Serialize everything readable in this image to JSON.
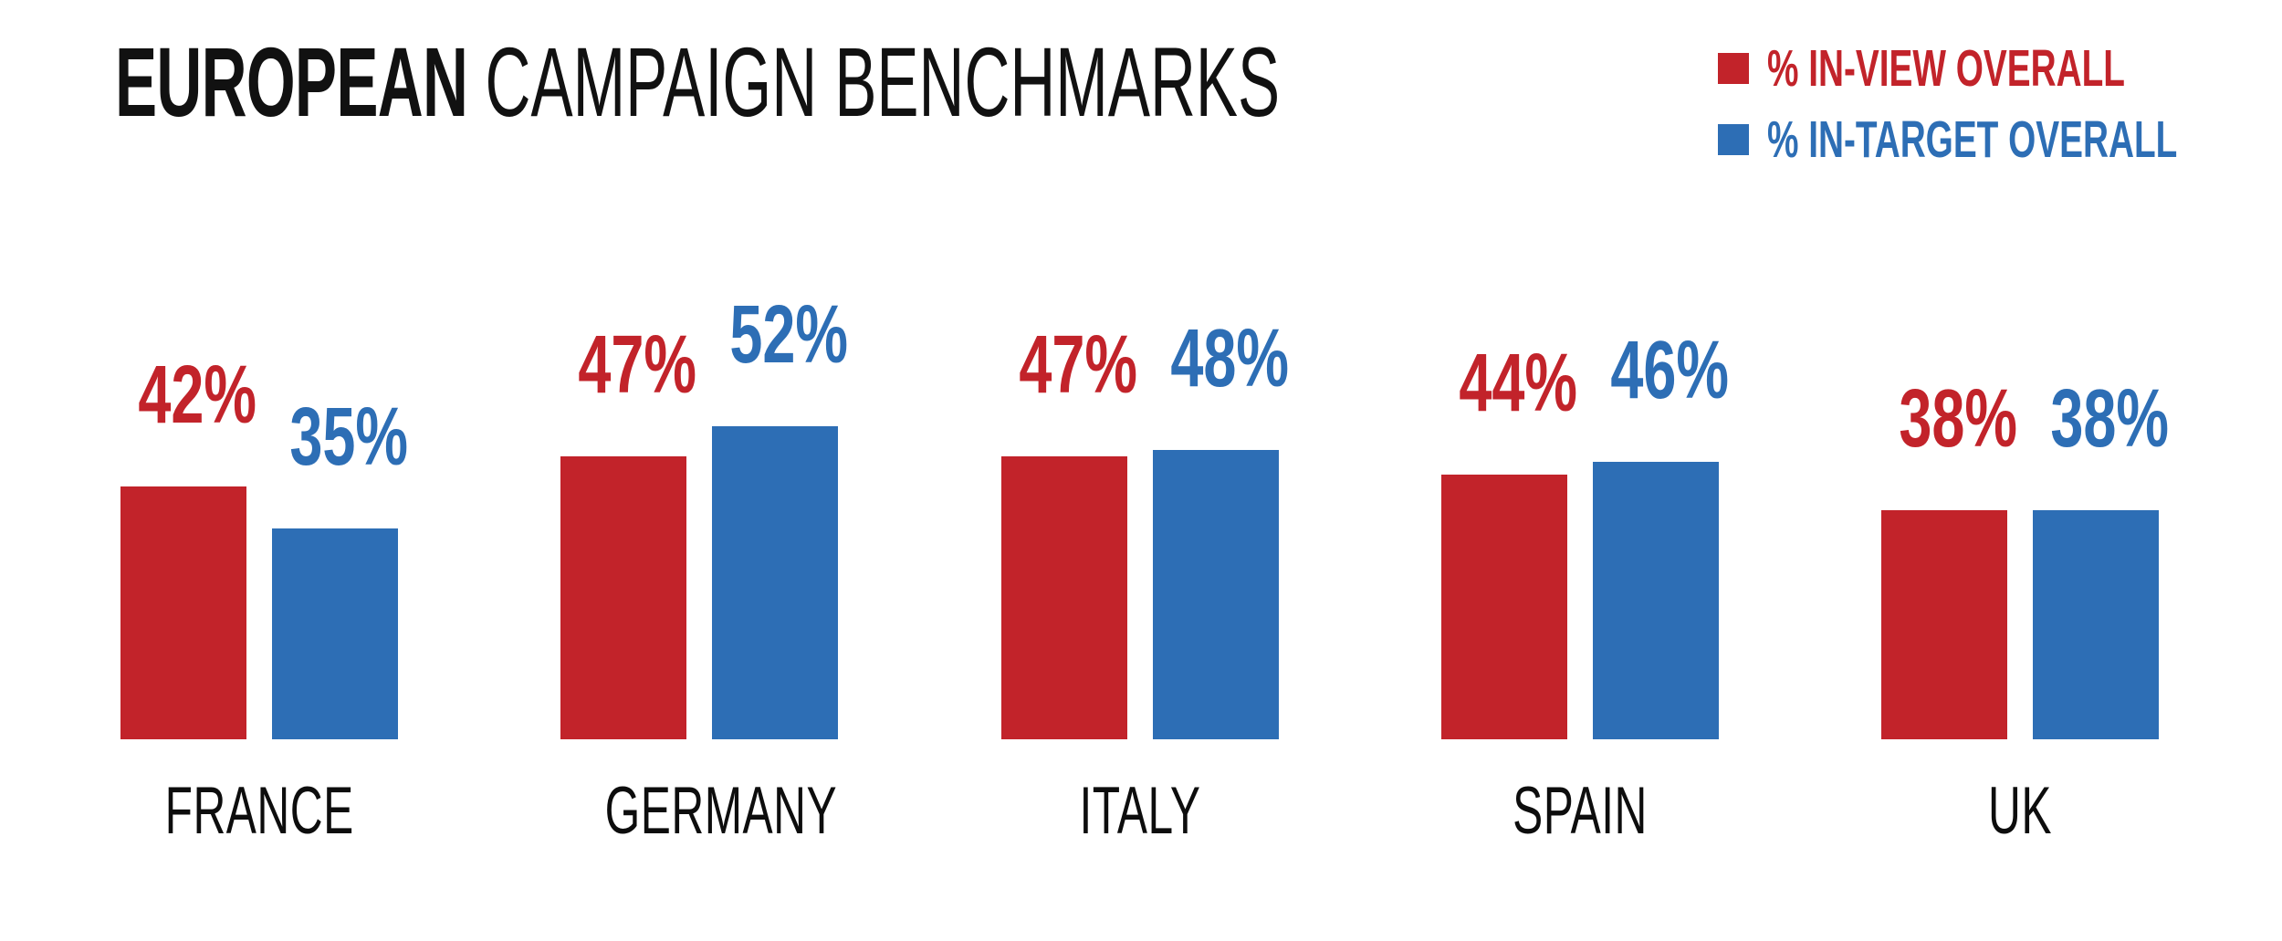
{
  "title": {
    "emphasis": "EUROPEAN",
    "rest": "CAMPAIGN BENCHMARKS"
  },
  "legend": [
    {
      "label": "% IN-VIEW OVERALL",
      "color": "#C2232A"
    },
    {
      "label": "% IN-TARGET OVERALL",
      "color": "#2D6EB5"
    }
  ],
  "colors": {
    "in_view": "#C2232A",
    "in_target": "#2D6EB5",
    "text": "#111111",
    "background": "#FFFFFF"
  },
  "chart_data": {
    "type": "bar",
    "title": "EUROPEAN CAMPAIGN BENCHMARKS",
    "categories": [
      "FRANCE",
      "GERMANY",
      "ITALY",
      "SPAIN",
      "UK"
    ],
    "series": [
      {
        "name": "% IN-VIEW OVERALL",
        "color": "#C2232A",
        "values": [
          42,
          47,
          47,
          44,
          38
        ]
      },
      {
        "name": "% IN-TARGET OVERALL",
        "color": "#2D6EB5",
        "values": [
          35,
          52,
          48,
          46,
          38
        ]
      }
    ],
    "value_suffix": "%",
    "data_labels": true,
    "ylim": [
      0,
      60
    ],
    "grid": false,
    "axes_hidden": true,
    "legend_position": "top-right"
  }
}
